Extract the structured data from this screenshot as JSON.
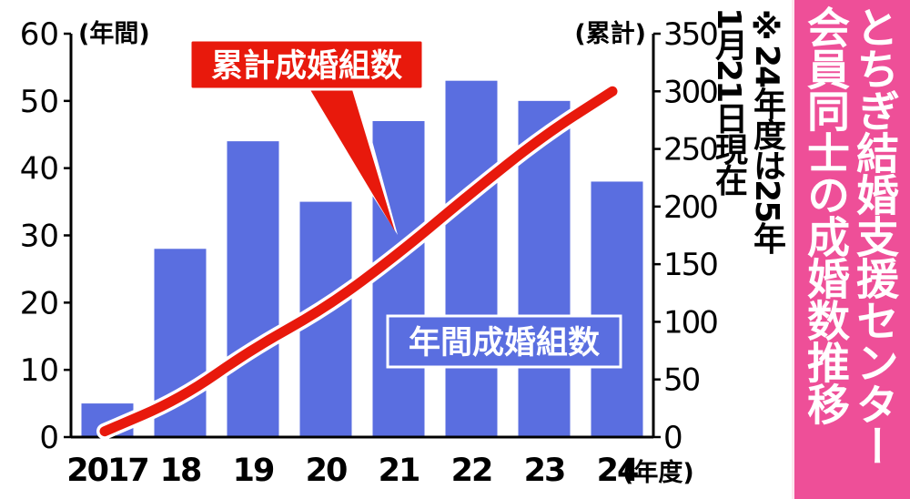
{
  "title": {
    "line1": "とちぎ結婚支援センター",
    "line2": "会員同士の成婚数推移"
  },
  "note": {
    "line1": "※24年度は25年",
    "line2": "1月21日現在"
  },
  "colors": {
    "bar": "#5a6ee0",
    "line": "#e8190c",
    "line_label_bg": "#e8190c",
    "title_band": "#ee4f98"
  },
  "chart_data": {
    "type": "bar",
    "categories": [
      "2017",
      "18",
      "19",
      "20",
      "21",
      "22",
      "23",
      "24"
    ],
    "xlabel_suffix": "(年度)",
    "series": [
      {
        "name": "年間成婚組数",
        "type": "bar",
        "axis": "left",
        "values": [
          5,
          28,
          44,
          35,
          47,
          53,
          50,
          38
        ]
      },
      {
        "name": "累計成婚組数",
        "type": "line",
        "axis": "right",
        "values": [
          5,
          33,
          77,
          112,
          159,
          212,
          262,
          300
        ]
      }
    ],
    "y_left": {
      "label": "(年間)",
      "range": [
        0,
        60
      ],
      "ticks": [
        "0",
        "10",
        "20",
        "30",
        "40",
        "50",
        "60"
      ]
    },
    "y_right": {
      "label": "(累計)",
      "range": [
        0,
        350
      ],
      "ticks": [
        "0",
        "50",
        "100",
        "150",
        "200",
        "250",
        "300",
        "350"
      ]
    },
    "grid": false
  }
}
